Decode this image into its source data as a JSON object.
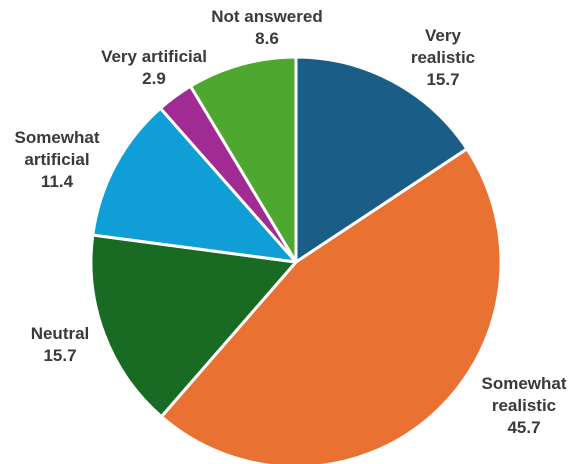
{
  "chart_data": {
    "type": "pie",
    "title": "",
    "start_angle_deg": 0,
    "direction": "clockwise",
    "legend": "none",
    "slices": [
      {
        "label": [
          "Very",
          "realistic"
        ],
        "value": 15.7,
        "value_label": "15.7",
        "color": "#1a5d86"
      },
      {
        "label": [
          "Somewhat",
          "realistic"
        ],
        "value": 45.7,
        "value_label": "45.7",
        "color": "#e97132"
      },
      {
        "label": [
          "Neutral"
        ],
        "value": 15.7,
        "value_label": "15.7",
        "color": "#196b24"
      },
      {
        "label": [
          "Somewhat",
          "artificial"
        ],
        "value": 11.4,
        "value_label": "11.4",
        "color": "#0f9ed5"
      },
      {
        "label": [
          "Very artificial"
        ],
        "value": 2.9,
        "value_label": "2.9",
        "color": "#a02b93"
      },
      {
        "label": [
          "Not answered"
        ],
        "value": 8.6,
        "value_label": "8.6",
        "color": "#4ea72e"
      }
    ]
  }
}
